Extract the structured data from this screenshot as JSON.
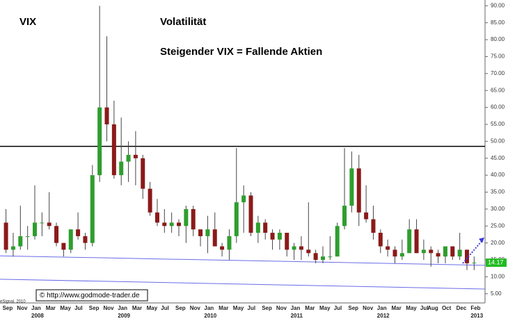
{
  "chart_data": {
    "type": "candlestick",
    "title": "VIX",
    "subtitle": "Volatilität",
    "annotation": "Steigender VIX = Fallende Aktien",
    "source": "© http://www.godmode-trader.de",
    "credit": "eSignal, 2010",
    "categories": [
      "Sep",
      null,
      "Nov",
      null,
      "Jan",
      null,
      "Mar",
      null,
      "May",
      null,
      "Jul",
      null,
      "Sep",
      null,
      "Nov",
      null,
      "Jan",
      null,
      "Mar",
      null,
      "May",
      null,
      "Jul",
      null,
      "Sep",
      null,
      "Nov",
      null,
      "Jan",
      null,
      "Mar",
      null,
      "May",
      null,
      "Jul",
      null,
      "Sep",
      null,
      "Nov",
      null,
      "Jan",
      null,
      "Mar",
      null,
      "May",
      null,
      "Jul",
      null,
      "Sep",
      null,
      "Nov",
      null,
      "Jan",
      null,
      "Mar",
      null,
      "May",
      null,
      "Jul",
      "Aug",
      null,
      "Oct",
      null,
      "Dec",
      null,
      "Feb"
    ],
    "year_labels": [
      null,
      null,
      null,
      null,
      "2008",
      null,
      null,
      null,
      null,
      null,
      null,
      null,
      null,
      null,
      null,
      null,
      "2009",
      null,
      null,
      null,
      null,
      null,
      null,
      null,
      null,
      null,
      null,
      null,
      "2010",
      null,
      null,
      null,
      null,
      null,
      null,
      null,
      null,
      null,
      null,
      null,
      "2011",
      null,
      null,
      null,
      null,
      null,
      null,
      null,
      null,
      null,
      null,
      null,
      "2012",
      null,
      null,
      null,
      null,
      null,
      null,
      null,
      null,
      null,
      null,
      null,
      null,
      "2013"
    ],
    "open": [
      26,
      18,
      19,
      22,
      22,
      26,
      26,
      25,
      20,
      18,
      24,
      22,
      20,
      40,
      60,
      55,
      40,
      44,
      46,
      45,
      36,
      29,
      26,
      25,
      26,
      25,
      30,
      24,
      22,
      24,
      19,
      18,
      22,
      32,
      34,
      23,
      26,
      23,
      21,
      23,
      18,
      19,
      18,
      17,
      15,
      16,
      16,
      25,
      31,
      42,
      29,
      27,
      23,
      19,
      18,
      16,
      17,
      24,
      17,
      18,
      17,
      16,
      19,
      16,
      18,
      14
    ],
    "high": [
      30,
      23,
      31,
      25,
      37,
      29,
      35,
      26,
      20,
      24,
      29,
      23,
      43,
      90,
      81,
      62,
      57,
      50,
      53,
      46,
      38,
      33,
      30,
      29,
      27,
      31,
      31,
      24,
      28,
      29,
      20,
      24,
      48,
      37,
      35,
      28,
      27,
      24,
      24,
      23,
      20,
      22,
      32,
      18,
      19,
      22,
      26,
      48,
      47,
      46,
      37,
      31,
      24,
      21,
      19,
      21,
      27,
      27,
      21,
      19,
      18,
      19,
      19,
      23,
      18,
      16
    ],
    "low": [
      17,
      16,
      18,
      18,
      21,
      22,
      24,
      19,
      16,
      17,
      21,
      18,
      19,
      38,
      50,
      39,
      37,
      38,
      37,
      33,
      28,
      25,
      23,
      23,
      22,
      20,
      22,
      19,
      17,
      19,
      16,
      15,
      20,
      23,
      22,
      20,
      21,
      18,
      18,
      16,
      15,
      15,
      16,
      14,
      14,
      15,
      16,
      24,
      29,
      25,
      26,
      21,
      17,
      16,
      14,
      15,
      17,
      17,
      15,
      13,
      14,
      14,
      15,
      15,
      12,
      12
    ],
    "close": [
      18,
      19,
      22,
      22,
      26,
      26,
      25,
      20,
      18,
      24,
      22,
      20,
      40,
      60,
      55,
      40,
      44,
      46,
      45,
      36,
      29,
      26,
      25,
      26,
      25,
      30,
      24,
      22,
      24,
      19,
      18,
      22,
      32,
      34,
      23,
      26,
      23,
      21,
      23,
      18,
      19,
      18,
      17,
      15,
      16,
      16,
      25,
      31,
      42,
      29,
      27,
      23,
      19,
      18,
      16,
      17,
      24,
      17,
      18,
      17,
      16,
      19,
      16,
      18,
      14,
      14.17
    ],
    "last_value_label": "14.17",
    "up_color": "#2e9e2e",
    "down_color": "#8b1a1a",
    "resistance": {
      "value": 48.5,
      "color": "#000000"
    },
    "trendlines": [
      {
        "start": 16.2,
        "end": 13.4,
        "color": "#6a6ae8"
      },
      {
        "start": 9.3,
        "end": 6.4,
        "color": "#6a6ae8"
      }
    ],
    "arrow": {
      "from": 14,
      "to": 21,
      "color": "#3a3ae0"
    },
    "ylim": [
      2.5,
      91.5
    ],
    "yticks": [
      {
        "value": 5,
        "label": "5.00"
      },
      {
        "value": 10,
        "label": "10.00"
      },
      {
        "value": 15,
        "label": "15.00"
      },
      {
        "value": 20,
        "label": "20.00"
      },
      {
        "value": 25,
        "label": "25.00"
      },
      {
        "value": 30,
        "label": "30.00"
      },
      {
        "value": 35,
        "label": "35.00"
      },
      {
        "value": 40,
        "label": "40.00"
      },
      {
        "value": 45,
        "label": "45.00"
      },
      {
        "value": 50,
        "label": "50.00"
      },
      {
        "value": 55,
        "label": "55.00"
      },
      {
        "value": 60,
        "label": "60.00"
      },
      {
        "value": 65,
        "label": "65.00"
      },
      {
        "value": 70,
        "label": "70.00"
      },
      {
        "value": 75,
        "label": "75.00"
      },
      {
        "value": 80,
        "label": "80.00"
      },
      {
        "value": 85,
        "label": "85.00"
      },
      {
        "value": 90,
        "label": "90.00"
      }
    ]
  }
}
